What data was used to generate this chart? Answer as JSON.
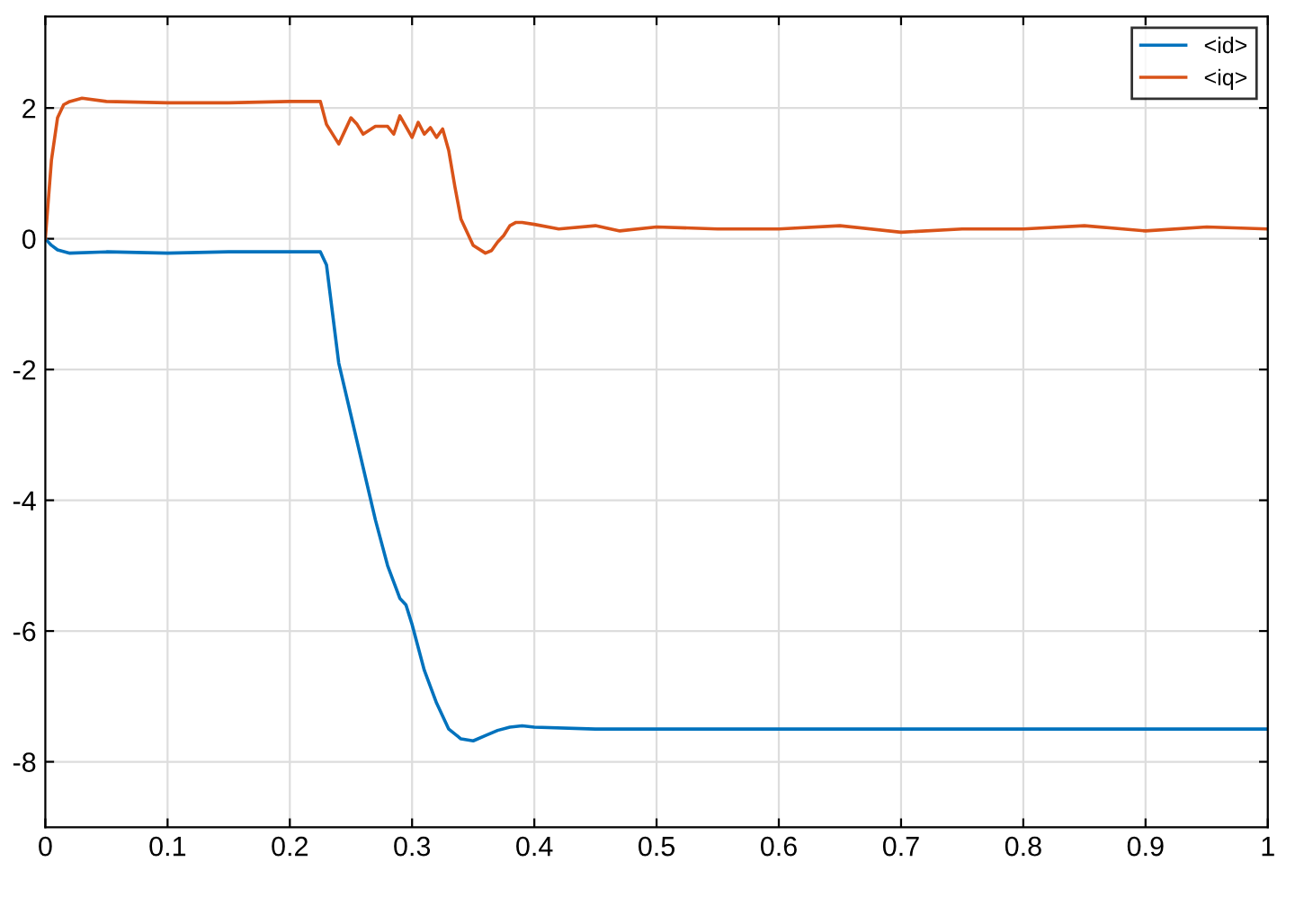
{
  "chart_data": {
    "type": "line",
    "xlim": [
      0,
      1
    ],
    "ylim": [
      -9,
      3.4
    ],
    "xticks": [
      0,
      0.1,
      0.2,
      0.3,
      0.4,
      0.5,
      0.6,
      0.7,
      0.8,
      0.9,
      1
    ],
    "yticks": [
      -8,
      -6,
      -4,
      -2,
      0,
      2
    ],
    "grid": true,
    "legend": "top right",
    "series": [
      {
        "name": "<id>",
        "color": "#0072bd",
        "x": [
          0,
          0.005,
          0.01,
          0.02,
          0.05,
          0.1,
          0.15,
          0.2,
          0.225,
          0.23,
          0.24,
          0.25,
          0.26,
          0.27,
          0.28,
          0.29,
          0.295,
          0.3,
          0.31,
          0.32,
          0.33,
          0.34,
          0.35,
          0.36,
          0.37,
          0.38,
          0.39,
          0.4,
          0.45,
          0.5,
          0.6,
          0.7,
          0.8,
          0.9,
          1
        ],
        "values": [
          0,
          -0.1,
          -0.17,
          -0.22,
          -0.2,
          -0.22,
          -0.2,
          -0.2,
          -0.2,
          -0.4,
          -1.9,
          -2.7,
          -3.5,
          -4.3,
          -5.0,
          -5.5,
          -5.6,
          -5.9,
          -6.6,
          -7.1,
          -7.5,
          -7.65,
          -7.68,
          -7.6,
          -7.52,
          -7.47,
          -7.45,
          -7.47,
          -7.5,
          -7.5,
          -7.5,
          -7.5,
          -7.5,
          -7.5,
          -7.5
        ]
      },
      {
        "name": "<iq>",
        "color": "#d95319",
        "x": [
          0,
          0.005,
          0.01,
          0.015,
          0.02,
          0.03,
          0.05,
          0.1,
          0.15,
          0.2,
          0.225,
          0.23,
          0.24,
          0.245,
          0.25,
          0.255,
          0.26,
          0.27,
          0.28,
          0.285,
          0.29,
          0.3,
          0.305,
          0.31,
          0.315,
          0.32,
          0.325,
          0.33,
          0.335,
          0.34,
          0.35,
          0.36,
          0.365,
          0.37,
          0.375,
          0.38,
          0.385,
          0.39,
          0.4,
          0.42,
          0.45,
          0.47,
          0.5,
          0.55,
          0.6,
          0.65,
          0.7,
          0.75,
          0.8,
          0.85,
          0.9,
          0.95,
          1
        ],
        "values": [
          0,
          1.2,
          1.85,
          2.05,
          2.1,
          2.15,
          2.1,
          2.08,
          2.08,
          2.1,
          2.1,
          1.75,
          1.45,
          1.65,
          1.85,
          1.75,
          1.6,
          1.72,
          1.72,
          1.6,
          1.88,
          1.55,
          1.78,
          1.6,
          1.7,
          1.55,
          1.68,
          1.35,
          0.8,
          0.3,
          -0.1,
          -0.22,
          -0.18,
          -0.05,
          0.05,
          0.2,
          0.25,
          0.25,
          0.22,
          0.15,
          0.2,
          0.12,
          0.18,
          0.15,
          0.15,
          0.2,
          0.1,
          0.15,
          0.15,
          0.2,
          0.12,
          0.18,
          0.15
        ]
      }
    ]
  }
}
